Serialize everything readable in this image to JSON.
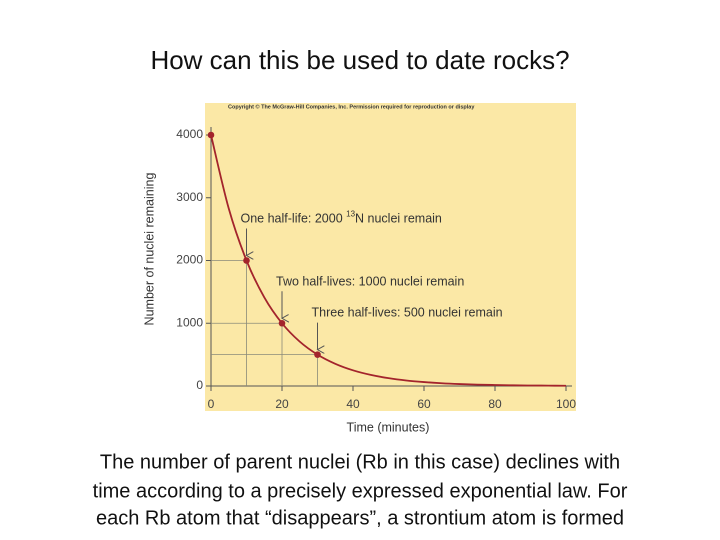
{
  "title": "How can this be used to date rocks?",
  "caption": [
    "The number of parent nuclei (Rb in this case) declines with",
    "time according to a precisely expressed exponential law.  For",
    "each Rb atom that “disappears”, a strontium atom is formed"
  ],
  "chart_data": {
    "type": "line",
    "copyright": "Copyright © The McGraw-Hill Companies, Inc. Permission required for reproduction or display",
    "x_label": "Time (minutes)",
    "y_label": "Number of nuclei remaining",
    "x": [
      0,
      5,
      10,
      15,
      20,
      25,
      30,
      35,
      40,
      45,
      50,
      55,
      60,
      65,
      70,
      75,
      80,
      85,
      90,
      95,
      100
    ],
    "values": [
      4000,
      2828,
      2000,
      1414,
      1000,
      707,
      500,
      354,
      250,
      177,
      125,
      88,
      63,
      44,
      31,
      22,
      16,
      11,
      8,
      6,
      4
    ],
    "color": "#a3242c",
    "points": {
      "x": [
        0,
        10,
        20,
        30
      ],
      "values": [
        4000,
        2000,
        1000,
        500
      ]
    },
    "xlim": [
      0,
      100
    ],
    "ylim": [
      0,
      4000
    ],
    "xticks": [
      0,
      20,
      40,
      60,
      80,
      100
    ],
    "yticks": [
      0,
      1000,
      2000,
      3000,
      4000
    ],
    "annotations": [
      {
        "before": "One half-life:  2000 ",
        "sup": "13",
        "after": "N nuclei remain"
      },
      {
        "text": "Two half-lives:  1000 nuclei remain"
      },
      {
        "text": "Three half-lives:  500 nuclei remain"
      }
    ]
  }
}
